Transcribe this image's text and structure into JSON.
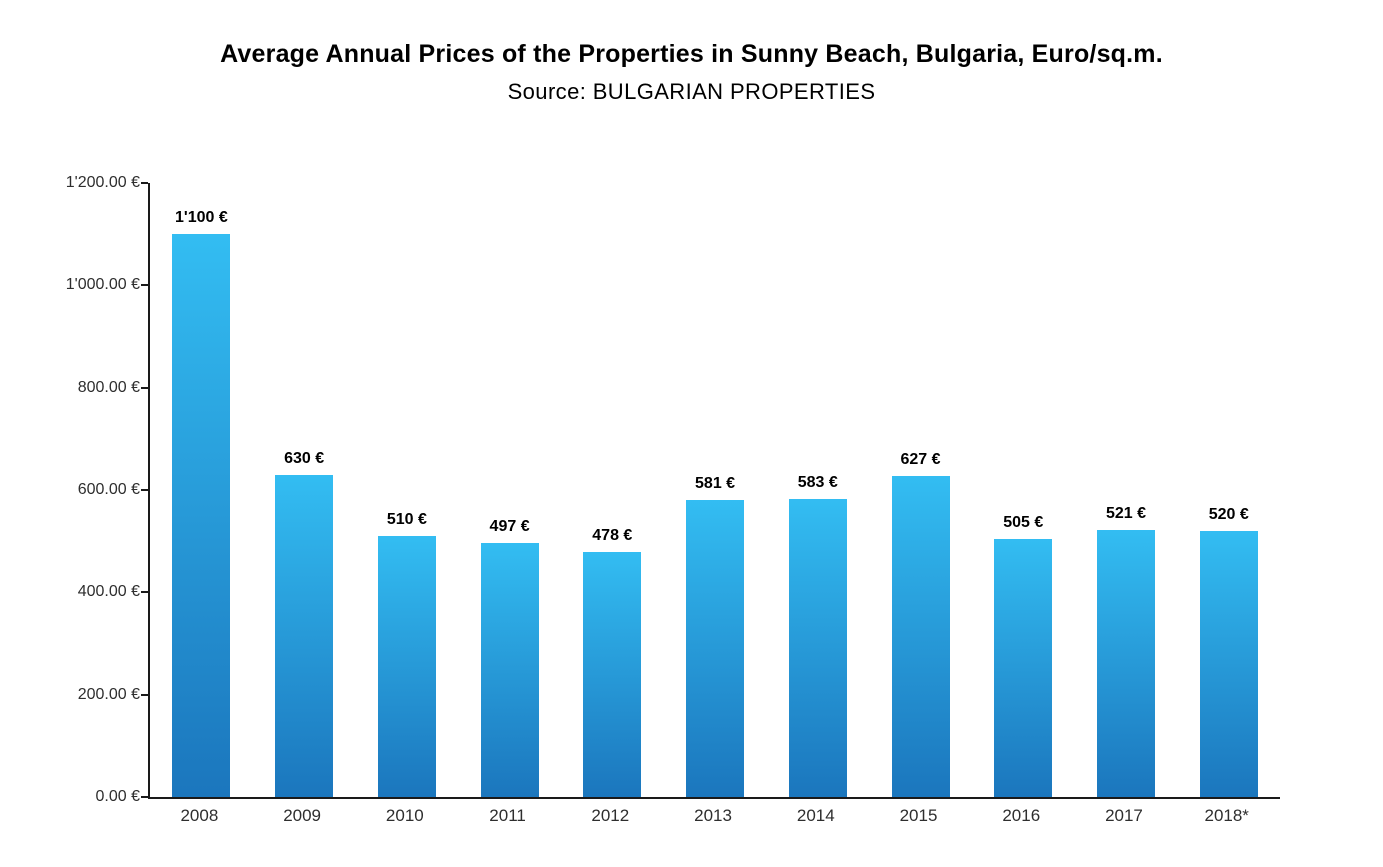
{
  "chart_data": {
    "type": "bar",
    "title": "Average Annual Prices of the Properties in Sunny Beach, Bulgaria, Euro/sq.m.",
    "subtitle": "Source: BULGARIAN PROPERTIES",
    "categories": [
      "2008",
      "2009",
      "2010",
      "2011",
      "2012",
      "2013",
      "2014",
      "2015",
      "2016",
      "2017",
      "2018*"
    ],
    "values": [
      1100,
      630,
      510,
      497,
      478,
      581,
      583,
      627,
      505,
      521,
      520
    ],
    "value_labels": [
      "1'100 €",
      "630 €",
      "510 €",
      "497 €",
      "478 €",
      "581 €",
      "583 €",
      "627 €",
      "505 €",
      "521 €",
      "520 €"
    ],
    "xlabel": "",
    "ylabel": "",
    "ylim": [
      0,
      1200
    ],
    "y_ticks": [
      {
        "value": 0,
        "label": "0.00 €"
      },
      {
        "value": 200,
        "label": "200.00 €"
      },
      {
        "value": 400,
        "label": "400.00 €"
      },
      {
        "value": 600,
        "label": "600.00 €"
      },
      {
        "value": 800,
        "label": "800.00 €"
      },
      {
        "value": 1000,
        "label": "1'000.00 €"
      },
      {
        "value": 1200,
        "label": "1'200.00 €"
      }
    ],
    "grid": false,
    "legend": "none",
    "colors": {
      "bar_gradient_top": "#33bdf2",
      "bar_gradient_bottom": "#1b76bd",
      "axis": "#1a1a1a",
      "title_text": "#000000",
      "tick_text": "#2e2e2e"
    }
  }
}
